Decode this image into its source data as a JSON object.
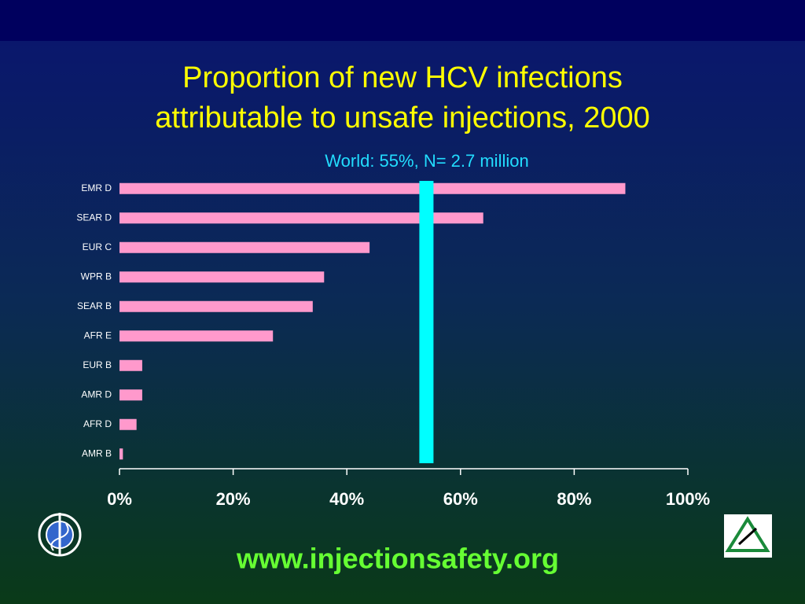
{
  "chart_data": {
    "type": "hbar",
    "title": [
      "Proportion of new HCV infections",
      "attributable to unsafe injections, 2000"
    ],
    "subtitle": "World: 55%, N= 2.7 million",
    "categories": [
      "EMR D",
      "SEAR D",
      "EUR C",
      "WPR B",
      "SEAR B",
      "AFR E",
      "EUR B",
      "AMR D",
      "AFR D",
      "AMR B"
    ],
    "values": [
      89,
      64,
      44,
      36,
      34,
      27,
      4,
      4,
      3,
      0.6
    ],
    "color": "#ff99cc",
    "reference_line": {
      "value": 54,
      "color": "#00ffff"
    },
    "xlim": [
      0,
      100
    ],
    "xticks": [
      {
        "value": 0,
        "label": "0%"
      },
      {
        "value": 20,
        "label": "20%"
      },
      {
        "value": 40,
        "label": "40%"
      },
      {
        "value": 60,
        "label": "60%"
      },
      {
        "value": 80,
        "label": "80%"
      },
      {
        "value": 100,
        "label": "100%"
      }
    ]
  },
  "footer": {
    "url": "www.injectionsafety.org"
  }
}
